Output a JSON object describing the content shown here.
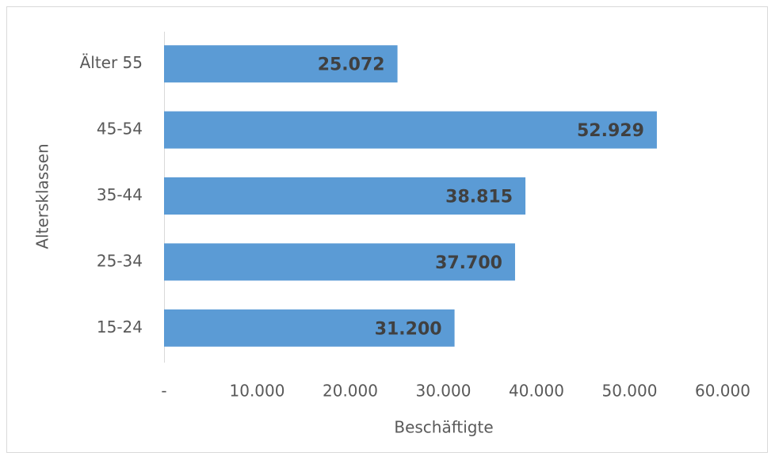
{
  "chart_data": {
    "type": "barh",
    "categories": [
      "Älter 55",
      "45-54",
      "35-44",
      "25-34",
      "15-24"
    ],
    "values": [
      25072,
      52929,
      38815,
      37700,
      31200
    ],
    "value_labels": [
      "25.072",
      "52.929",
      "38.815",
      "37.700",
      "31.200"
    ],
    "color": "#5b9bd5",
    "xlabel": "Beschäftigte",
    "ylabel": "Altersklassen",
    "xlim": [
      0,
      60000
    ],
    "xticks": [
      {
        "value": 0,
        "label": "-"
      },
      {
        "value": 10000,
        "label": "10.000"
      },
      {
        "value": 20000,
        "label": "20.000"
      },
      {
        "value": 30000,
        "label": "30.000"
      },
      {
        "value": 40000,
        "label": "40.000"
      },
      {
        "value": 50000,
        "label": "50.000"
      },
      {
        "value": 60000,
        "label": "60.000"
      }
    ],
    "grid": false
  }
}
